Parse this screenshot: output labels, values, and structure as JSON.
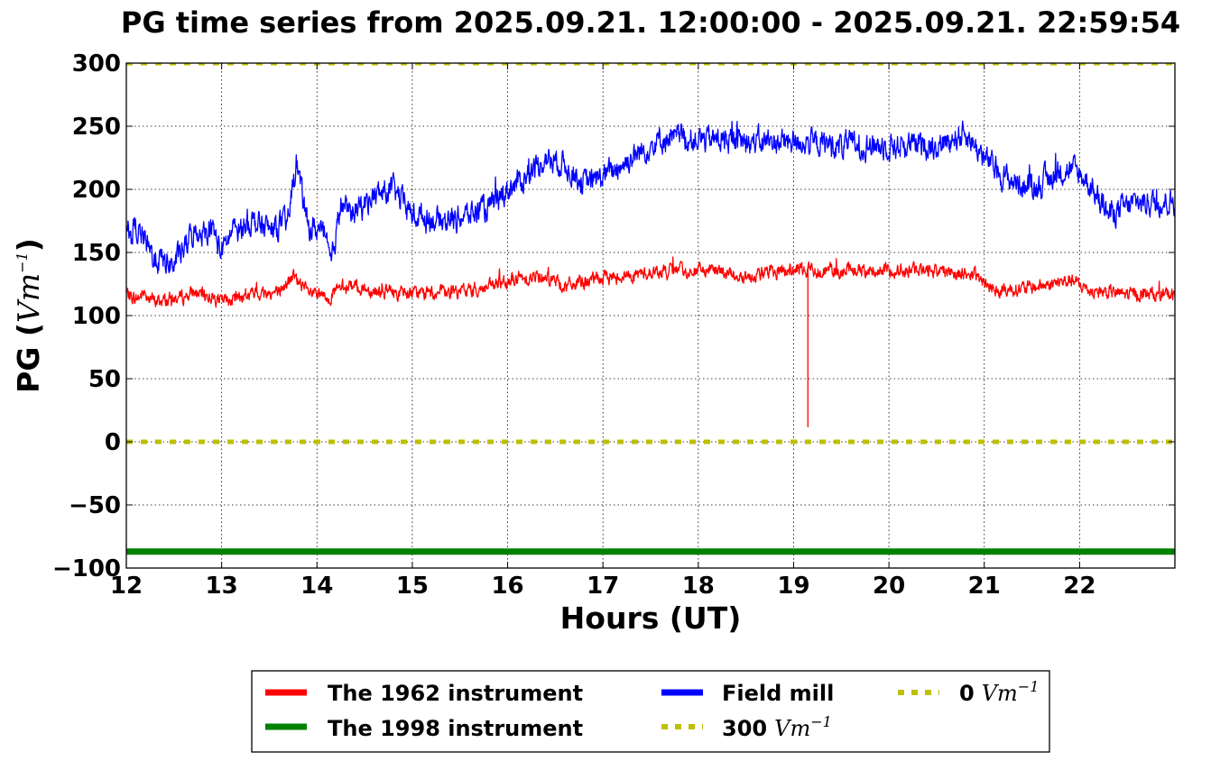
{
  "chart_data": {
    "type": "line",
    "title": "PG time series from 2025.09.21. 12:00:00 - 2025.09.21. 22:59:54",
    "xlabel": "Hours (UT)",
    "ylabel": "PG (",
    "ylabel_unit": "Vm",
    "ylabel_exp": "−1",
    "ylabel_close": ")",
    "xlim": [
      12,
      23
    ],
    "ylim": [
      -100,
      300
    ],
    "xticks": [
      12,
      13,
      14,
      15,
      16,
      17,
      18,
      19,
      20,
      21,
      22
    ],
    "xtick_labels": [
      "12",
      "13",
      "14",
      "15",
      "16",
      "17",
      "18",
      "19",
      "20",
      "21",
      "22"
    ],
    "yticks": [
      -100,
      -50,
      0,
      50,
      100,
      150,
      200,
      250,
      300
    ],
    "ytick_labels": [
      "−100",
      "−50",
      "0",
      "50",
      "100",
      "150",
      "200",
      "250",
      "300"
    ],
    "grid": true,
    "legend_placement": "bottom-center",
    "series": [
      {
        "name": "The 1962 instrument",
        "color": "#ff0000",
        "style": "solid",
        "noise": 6,
        "x": [
          12.0,
          12.1,
          12.2,
          12.3,
          12.5,
          12.7,
          12.9,
          13.0,
          13.2,
          13.4,
          13.6,
          13.75,
          13.9,
          14.1,
          14.3,
          14.6,
          15.0,
          15.4,
          15.8,
          16.0,
          16.4,
          16.6,
          17.0,
          17.5,
          18.0,
          18.5,
          19.0,
          19.15,
          19.5,
          20.0,
          20.5,
          20.9,
          21.1,
          21.5,
          21.9,
          22.1,
          22.5,
          23.0
        ],
        "y": [
          118,
          113,
          118,
          111,
          113,
          118,
          115,
          111,
          115,
          118,
          118,
          131,
          118,
          114,
          124,
          120,
          117,
          118,
          122,
          128,
          132,
          123,
          130,
          134,
          136,
          132,
          136,
          12,
          136,
          136,
          136,
          132,
          120,
          122,
          128,
          120,
          117,
          117
        ]
      },
      {
        "name": "The 1998 instrument",
        "color": "#008000",
        "style": "thick",
        "x": [
          12,
          23
        ],
        "y": [
          -87,
          -87
        ]
      },
      {
        "name": "Field mill",
        "color": "#0000ff",
        "style": "solid",
        "noise": 11,
        "x": [
          12.0,
          12.1,
          12.3,
          12.5,
          12.7,
          12.9,
          13.0,
          13.1,
          13.3,
          13.5,
          13.7,
          13.78,
          13.9,
          14.05,
          14.15,
          14.25,
          14.35,
          14.6,
          14.8,
          15.0,
          15.3,
          15.6,
          15.8,
          16.0,
          16.2,
          16.4,
          16.6,
          16.8,
          17.0,
          17.3,
          17.6,
          18.0,
          18.5,
          19.0,
          19.5,
          20.0,
          20.5,
          20.8,
          21.0,
          21.2,
          21.5,
          21.8,
          21.95,
          22.1,
          22.3,
          22.6,
          23.0
        ],
        "y": [
          165,
          170,
          145,
          140,
          165,
          170,
          150,
          165,
          175,
          168,
          175,
          225,
          170,
          168,
          140,
          190,
          180,
          195,
          200,
          180,
          175,
          180,
          185,
          200,
          210,
          225,
          220,
          205,
          210,
          225,
          240,
          240,
          238,
          238,
          235,
          235,
          235,
          245,
          225,
          210,
          200,
          215,
          215,
          205,
          180,
          190,
          190
        ]
      },
      {
        "name": "300 Vm−1",
        "label_value": "300",
        "label_unit": "Vm",
        "label_exp": "−1",
        "color": "#bfbf00",
        "style": "dotted",
        "x": [
          12,
          23
        ],
        "y": [
          300,
          300
        ]
      },
      {
        "name": "0 Vm−1",
        "label_value": "0",
        "label_unit": "Vm",
        "label_exp": "−1",
        "color": "#bfbf00",
        "style": "dotted",
        "x": [
          12,
          23
        ],
        "y": [
          0,
          0
        ]
      }
    ]
  }
}
